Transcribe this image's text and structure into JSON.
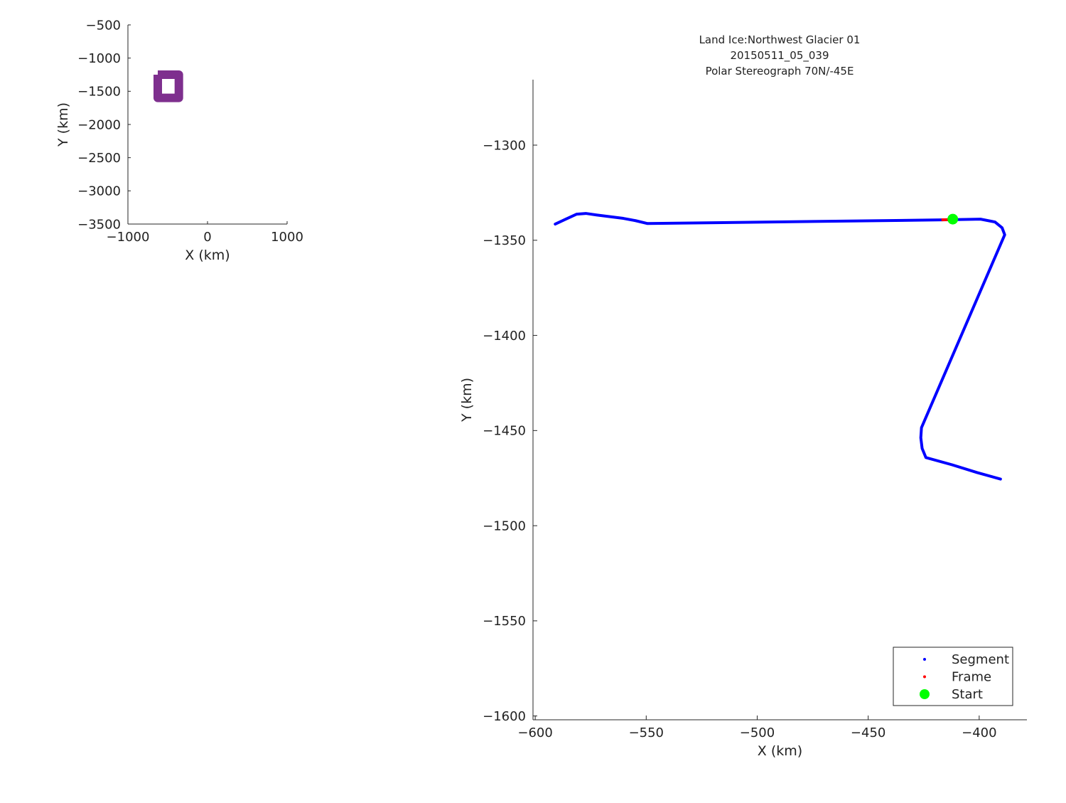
{
  "chart_data": [
    {
      "type": "line",
      "xlabel": "X (km)",
      "ylabel": "Y (km)",
      "xlim": [
        -1000,
        1000
      ],
      "ylim": [
        -3500,
        -500
      ],
      "xticks": [
        -1000,
        0,
        1000
      ],
      "yticks": [
        -500,
        -1000,
        -1500,
        -2000,
        -2500,
        -3000,
        -3500
      ],
      "grid": false,
      "series": [
        {
          "color": "#7e2f8e",
          "x": [
            -625,
            -360,
            -360,
            -625,
            -625
          ],
          "y": [
            -1250,
            -1250,
            -1600,
            -1600,
            -1250
          ]
        }
      ]
    },
    {
      "type": "line",
      "title": [
        "Land Ice:Northwest Glacier 01",
        "20150511_05_039",
        "Polar Stereograph 70N/-45E"
      ],
      "xlabel": "X (km)",
      "ylabel": "Y (km)",
      "xlim": [
        -601,
        -378.5
      ],
      "ylim": [
        -1602,
        -1265.6
      ],
      "xticks": [
        -600,
        -550,
        -500,
        -450,
        -400
      ],
      "yticks": [
        -1300,
        -1350,
        -1400,
        -1450,
        -1500,
        -1550,
        -1600
      ],
      "grid": false,
      "legend_position": "bottom-right",
      "series": [
        {
          "name": "Segment",
          "color": "#0000ff",
          "x": [
            -591.0,
            -586.2,
            -581.4,
            -577.2,
            -572.4,
            -560.3,
            -554.8,
            -549.4,
            -417.0,
            -399.4,
            -392.9,
            -389.7,
            -388.5,
            -426.0,
            -426.3,
            -425.7,
            -424.0,
            -412.2,
            -400.9,
            -390.4
          ],
          "y": [
            -1341.5,
            -1338.9,
            -1336.3,
            -1335.9,
            -1336.7,
            -1338.5,
            -1339.7,
            -1341.2,
            -1339.3,
            -1338.9,
            -1340.4,
            -1343.4,
            -1347.1,
            -1448.5,
            -1453.8,
            -1459.4,
            -1464.2,
            -1468.0,
            -1472.1,
            -1475.5
          ]
        },
        {
          "name": "Frame",
          "color": "#ff0000",
          "x": [
            -417.0,
            -412.0
          ],
          "y": [
            -1339.3,
            -1339.1
          ]
        },
        {
          "name": "Start",
          "color": "#00ff00",
          "x": [
            -411.9
          ],
          "y": [
            -1338.9
          ]
        }
      ]
    }
  ]
}
